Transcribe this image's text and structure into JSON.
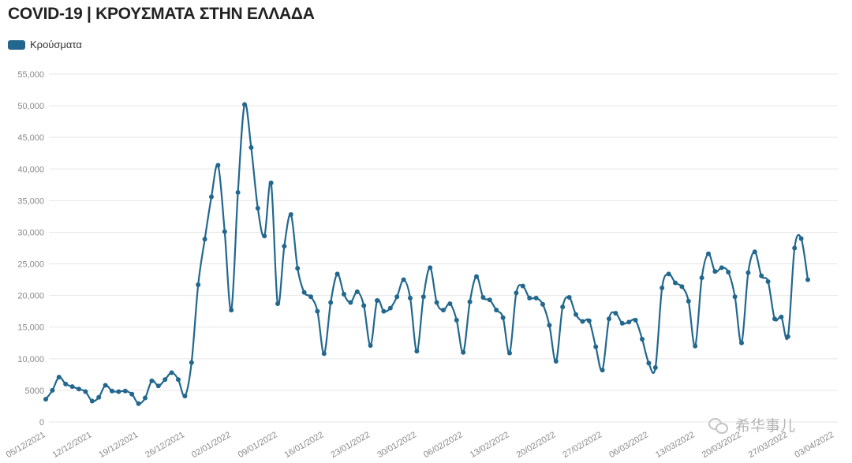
{
  "title": "COVID-19 | ΚΡΟΥΣΜΑΤΑ ΣΤΗΝ ΕΛΛΑΔΑ",
  "legend": {
    "label": "Κρούσματα",
    "color": "#22678e"
  },
  "watermark": {
    "text": "希华事儿",
    "icon": "wechat-logo"
  },
  "chart_data": {
    "type": "line",
    "title": "COVID-19 | ΚΡΟΥΣΜΑΤΑ ΣΤΗΝ ΕΛΛΑΔΑ",
    "xlabel": "",
    "ylabel": "",
    "ylim": [
      0,
      55000
    ],
    "yticks": [
      0,
      5000,
      10000,
      15000,
      20000,
      25000,
      30000,
      35000,
      40000,
      45000,
      50000,
      55000
    ],
    "ytick_labels": [
      "0",
      "5000",
      "10,000",
      "15,000",
      "20,000",
      "25,000",
      "30,000",
      "35,000",
      "40,000",
      "45,000",
      "50,000",
      "55,000"
    ],
    "xticks": [
      "05/12/2021",
      "12/12/2021",
      "19/12/2021",
      "26/12/2021",
      "02/01/2022",
      "09/01/2022",
      "16/01/2022",
      "23/01/2022",
      "30/01/2022",
      "06/02/2022",
      "13/02/2022",
      "20/02/2022",
      "27/02/2022",
      "06/03/2022",
      "13/03/2022",
      "20/03/2022",
      "27/03/2022",
      "03/04/2022"
    ],
    "grid": true,
    "legend_position": "top-left",
    "x_start": "05/12/2021",
    "series": [
      {
        "name": "Κρούσματα",
        "color": "#22678e",
        "values": [
          3600,
          5000,
          7100,
          6000,
          5600,
          5200,
          4800,
          3300,
          3900,
          5800,
          4900,
          4800,
          4900,
          4400,
          2900,
          3800,
          6500,
          5700,
          6700,
          7800,
          6700,
          4100,
          9400,
          21700,
          28900,
          35600,
          40600,
          30100,
          17700,
          36300,
          50200,
          43400,
          33800,
          29400,
          37800,
          18700,
          27800,
          32800,
          24300,
          20500,
          19800,
          17500,
          10800,
          18900,
          23400,
          20200,
          18900,
          20600,
          18400,
          12100,
          19200,
          17500,
          18000,
          19800,
          22500,
          19600,
          11200,
          19800,
          24400,
          18900,
          17700,
          18700,
          16100,
          11000,
          19000,
          23000,
          19700,
          19300,
          17700,
          16500,
          10900,
          20400,
          21500,
          19600,
          19600,
          18600,
          15300,
          9600,
          18200,
          19700,
          17000,
          15900,
          16000,
          11900,
          8200,
          16300,
          17200,
          15600,
          15800,
          16100,
          13100,
          9300,
          8600,
          21200,
          23400,
          22000,
          21400,
          19100,
          12000,
          22800,
          26600,
          23800,
          24400,
          23700,
          19800,
          12500,
          23600,
          26900,
          23100,
          22200,
          16300,
          16600,
          13500,
          27500,
          29000,
          22500
        ]
      }
    ]
  }
}
